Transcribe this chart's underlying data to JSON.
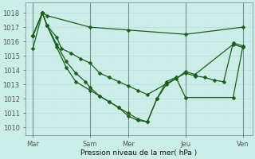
{
  "xlabel": "Pression niveau de la mer( hPa )",
  "bg_color": "#cceee8",
  "grid_major_color": "#aaddcc",
  "grid_minor_color": "#ddeee8",
  "line_color": "#1a5c1a",
  "marker": "D",
  "markersize": 2.5,
  "linewidth": 0.9,
  "ylim": [
    1009.5,
    1018.7
  ],
  "yticks": [
    1010,
    1011,
    1012,
    1013,
    1014,
    1015,
    1016,
    1017,
    1018
  ],
  "xlim": [
    -0.5,
    47
  ],
  "xtick_labels": [
    "Mar",
    "Sam",
    "Mer",
    "Jeu",
    "Ven"
  ],
  "xtick_positions": [
    1,
    13,
    21,
    33,
    45
  ],
  "vline_positions": [
    1,
    13,
    21,
    33,
    45
  ],
  "series": {
    "line1_x": [
      1,
      3,
      4,
      13,
      21,
      33,
      45
    ],
    "line1_y": [
      1015.5,
      1018.0,
      1017.8,
      1017.0,
      1016.8,
      1016.5,
      1017.0
    ],
    "line2_x": [
      1,
      3,
      4,
      6,
      7,
      9,
      11,
      13,
      15,
      17,
      19,
      21,
      23,
      25,
      33,
      35,
      37,
      39,
      41,
      43,
      45
    ],
    "line2_y": [
      1016.4,
      1018.0,
      1017.1,
      1016.3,
      1015.5,
      1015.2,
      1014.8,
      1014.5,
      1013.8,
      1013.5,
      1013.2,
      1012.9,
      1012.6,
      1012.3,
      1013.8,
      1013.6,
      1013.5,
      1013.3,
      1013.2,
      1015.9,
      1015.7
    ],
    "line3_x": [
      1,
      3,
      4,
      6,
      8,
      10,
      12,
      13,
      15,
      17,
      19,
      21,
      23,
      25,
      27,
      29,
      31,
      33,
      35,
      43,
      45
    ],
    "line3_y": [
      1016.4,
      1018.0,
      1017.1,
      1015.8,
      1014.6,
      1013.8,
      1013.2,
      1012.8,
      1012.2,
      1011.8,
      1011.4,
      1011.0,
      1010.6,
      1010.4,
      1012.0,
      1013.0,
      1013.4,
      1013.9,
      1013.7,
      1015.8,
      1015.6
    ],
    "line4_x": [
      1,
      3,
      4,
      6,
      8,
      10,
      13,
      15,
      17,
      19,
      21,
      23,
      25,
      27,
      29,
      31,
      33,
      43,
      45
    ],
    "line4_y": [
      1016.4,
      1018.0,
      1017.1,
      1015.6,
      1014.2,
      1013.2,
      1012.6,
      1012.2,
      1011.8,
      1011.4,
      1010.8,
      1010.5,
      1010.4,
      1012.0,
      1013.2,
      1013.5,
      1012.1,
      1012.1,
      1015.6
    ]
  }
}
